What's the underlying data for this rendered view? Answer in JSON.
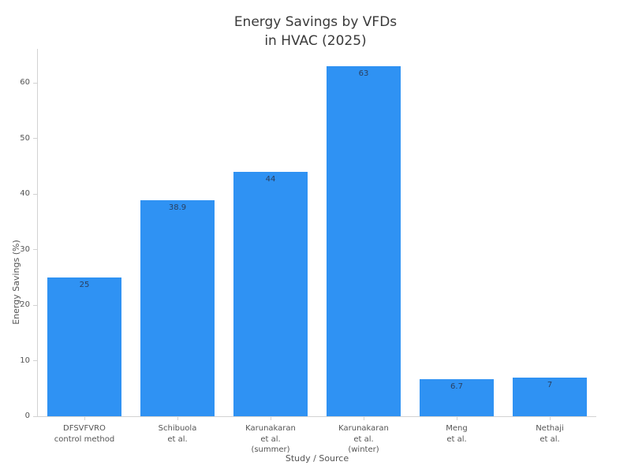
{
  "title_lines": [
    "Energy Savings by VFDs",
    "in HVAC (2025)"
  ],
  "chart_data": {
    "type": "bar",
    "title": "Energy Savings by VFDs in HVAC (2025)",
    "xlabel": "Study / Source",
    "ylabel": "Energy Savings (%)",
    "categories": [
      [
        "DFSVFVRO",
        "control method"
      ],
      [
        "Schibuola",
        "et al."
      ],
      [
        "Karunakaran",
        "et al.",
        "(summer)"
      ],
      [
        "Karunakaran",
        "et al.",
        "(winter)"
      ],
      [
        "Meng",
        "et al."
      ],
      [
        "Nethaji",
        "et al."
      ]
    ],
    "values": [
      25,
      38.9,
      44,
      63,
      6.7,
      7
    ],
    "value_labels": [
      "25",
      "38.9",
      "44",
      "63",
      "6.7",
      "7"
    ],
    "yticks": [
      0,
      10,
      20,
      30,
      40,
      50,
      60
    ],
    "ylim": [
      0,
      66.1
    ],
    "grid": false,
    "legend": null,
    "colors": {
      "bar": "#2F92F3",
      "bar_value_text": "#2a3f5f",
      "axis_line": "#d2d2d2",
      "tick_text": "#545454",
      "title_text": "#3a3a3a"
    }
  }
}
